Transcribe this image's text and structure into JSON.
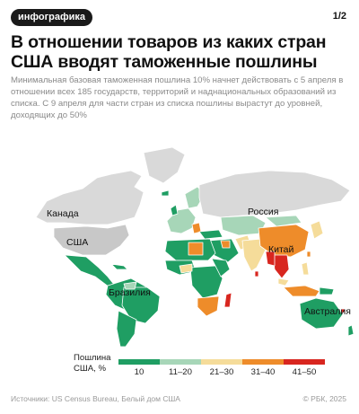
{
  "header": {
    "tag": "инфографика",
    "pager": "1/2",
    "title": "В отношении товаров из каких стран США вводят таможенные пошлины",
    "subtitle": "Минимальная базовая таможенная пошлина 10% начнет действовать с 5 апреля в отношении всех 185 государств, территорий и наднациональных образований из списка. С 9 апреля для части стран из списка пошлины вырастут до уровней, доходящих до 50%"
  },
  "map": {
    "labels": {
      "canada": "Канада",
      "usa": "США",
      "russia": "Россия",
      "brazil": "Бразилия",
      "china": "Китай",
      "australia": "Австралия"
    },
    "colors": {
      "no_tariff": "#d9d9d9",
      "usa": "#c8c8c8",
      "tier_10": "#1f9e63",
      "tier_11_20": "#a7d6b8",
      "tier_21_30": "#f5dc9a",
      "tier_31_40": "#ee8c2a",
      "tier_41_50": "#d8261f"
    }
  },
  "legend": {
    "title": "Пошлина США, %",
    "items": [
      {
        "label": "10",
        "color": "#1f9e63"
      },
      {
        "label": "11–20",
        "color": "#a7d6b8"
      },
      {
        "label": "21–30",
        "color": "#f5dc9a"
      },
      {
        "label": "31–40",
        "color": "#ee8c2a"
      },
      {
        "label": "41–50",
        "color": "#d8261f"
      }
    ]
  },
  "footer": {
    "source": "Источники: US Census Bureau, Белый дом США",
    "copyright": "© РБК, 2025"
  }
}
